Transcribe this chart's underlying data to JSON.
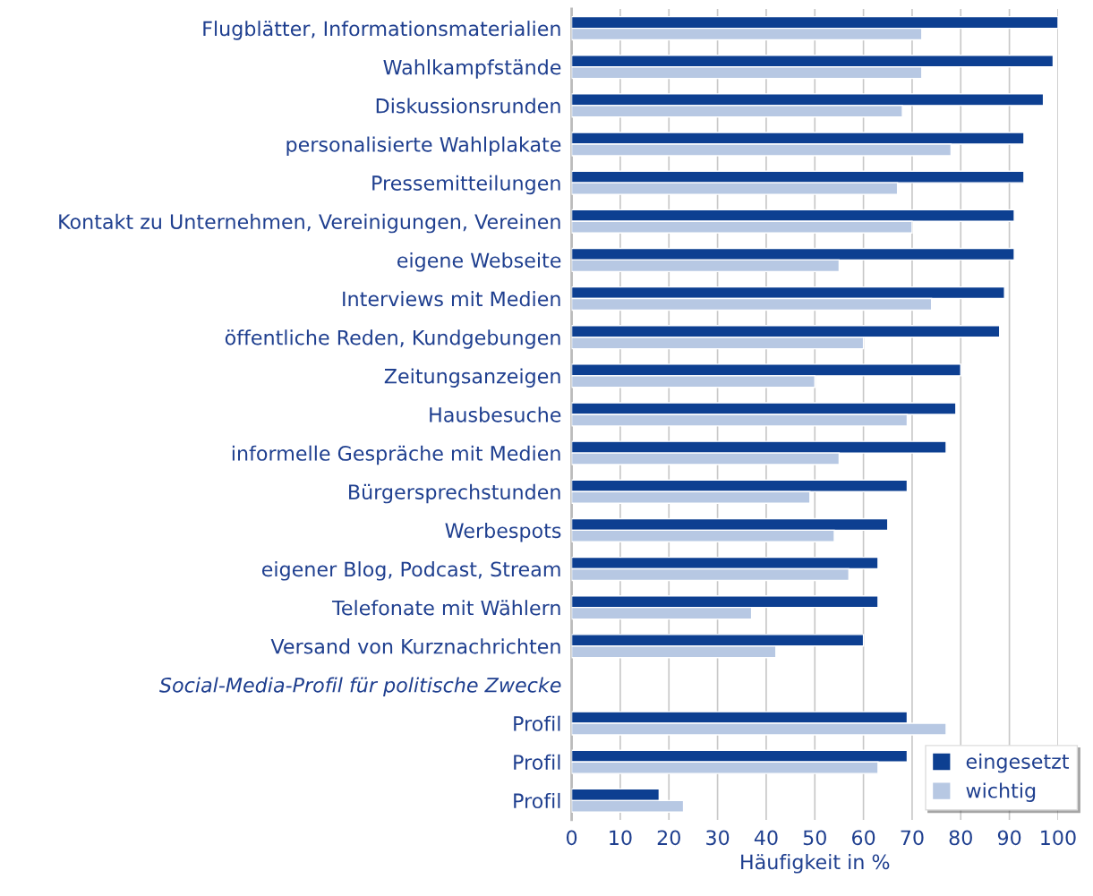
{
  "chart_data": {
    "type": "bar",
    "orientation": "horizontal",
    "xlabel": "Häufigkeit in %",
    "categories": [
      "Flugblätter, Informationsmaterialien",
      "Wahlkampfstände",
      "Diskussionsrunden",
      "personalisierte Wahlplakate",
      "Pressemitteilungen",
      "Kontakt zu Unternehmen, Vereinigungen, Vereinen",
      "eigene Webseite",
      "Interviews mit Medien",
      "öffentliche Reden, Kundgebungen",
      "Zeitungsanzeigen",
      "Hausbesuche",
      "informelle Gespräche mit Medien",
      "Bürgersprechstunden",
      "Werbespots",
      "eigener Blog, Podcast, Stream",
      "Telefonate mit Wählern",
      "Versand von Kurznachrichten",
      "Social-Media-Profil für politische Zwecke",
      "Profil",
      "Profil",
      "Profil"
    ],
    "series": [
      {
        "name": "eingesetzt",
        "color": "#0d3f91",
        "values": [
          100,
          99,
          97,
          93,
          93,
          91,
          91,
          89,
          88,
          80,
          79,
          77,
          69,
          65,
          63,
          63,
          60,
          null,
          69,
          69,
          18
        ]
      },
      {
        "name": "wichtig",
        "color": "#b7c8e3",
        "values": [
          72,
          72,
          68,
          78,
          67,
          70,
          55,
          74,
          60,
          50,
          69,
          55,
          49,
          54,
          57,
          37,
          42,
          null,
          77,
          63,
          23
        ]
      }
    ],
    "xlim": [
      0,
      100
    ],
    "xticks": [
      0,
      10,
      20,
      30,
      40,
      50,
      60,
      70,
      80,
      90,
      100
    ],
    "grid": "x",
    "legend": "bottom right"
  }
}
